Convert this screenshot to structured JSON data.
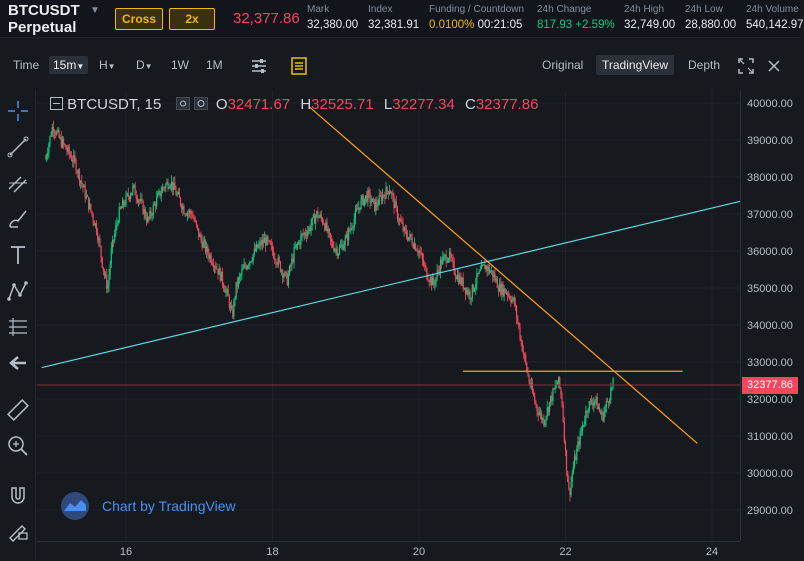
{
  "header": {
    "symbol_line1": "BTCUSDT",
    "symbol_line2": "Perpetual",
    "margin_mode": "Cross",
    "leverage": "2x",
    "last_price": "32,377.86",
    "stats": [
      {
        "label": "Mark",
        "value": "32,380.00",
        "tone": "normal"
      },
      {
        "label": "Index",
        "value": "32,381.91",
        "tone": "normal"
      },
      {
        "label": "Funding / Countdown",
        "value": "0.0100%",
        "value2": "00:21:05",
        "tone": "yellow"
      },
      {
        "label": "24h Change",
        "value": "817.93 +2.59%",
        "tone": "green"
      },
      {
        "label": "24h High",
        "value": "32,749.00",
        "tone": "normal"
      },
      {
        "label": "24h Low",
        "value": "28,880.00",
        "tone": "normal"
      },
      {
        "label": "24h Volume",
        "value": "540,142.97",
        "tone": "normal"
      }
    ]
  },
  "toolbar": {
    "time_label": "Time",
    "interval_selected": "15m",
    "intervals": [
      "H",
      "D",
      "1W",
      "1M"
    ],
    "view_tabs": [
      "Original",
      "TradingView",
      "Depth"
    ],
    "active_view": "TradingView"
  },
  "legend": {
    "title": "BTCUSDT, 15",
    "o_label": "O",
    "o": "32471.67",
    "h_label": "H",
    "h": "32525.71",
    "l_label": "L",
    "l": "32277.34",
    "c_label": "C",
    "c": "32377.86"
  },
  "watermark": "Chart by TradingView",
  "chart_data": {
    "type": "candlestick",
    "y_ticks": [
      "40000.00",
      "39000.00",
      "38000.00",
      "37000.00",
      "36000.00",
      "35000.00",
      "34000.00",
      "33000.00",
      "32000.00",
      "31000.00",
      "30000.00",
      "29000.00"
    ],
    "x_ticks": [
      "16",
      "18",
      "20",
      "22",
      "24"
    ],
    "current_price": "32377.86",
    "ylim": [
      28700,
      40200
    ],
    "xlim": [
      14.85,
      24.4
    ],
    "close_path": [
      [
        14.9,
        38500
      ],
      [
        15.0,
        39400
      ],
      [
        15.1,
        39000
      ],
      [
        15.2,
        38700
      ],
      [
        15.3,
        38400
      ],
      [
        15.4,
        37800
      ],
      [
        15.5,
        37200
      ],
      [
        15.6,
        36600
      ],
      [
        15.7,
        35400
      ],
      [
        15.75,
        35000
      ],
      [
        15.8,
        36000
      ],
      [
        15.9,
        37000
      ],
      [
        16.0,
        37400
      ],
      [
        16.1,
        37700
      ],
      [
        16.2,
        37300
      ],
      [
        16.3,
        36800
      ],
      [
        16.4,
        37300
      ],
      [
        16.5,
        37700
      ],
      [
        16.6,
        37900
      ],
      [
        16.7,
        37500
      ],
      [
        16.8,
        37100
      ],
      [
        16.9,
        37000
      ],
      [
        17.0,
        36400
      ],
      [
        17.1,
        36000
      ],
      [
        17.2,
        35700
      ],
      [
        17.3,
        35300
      ],
      [
        17.4,
        34700
      ],
      [
        17.45,
        34200
      ],
      [
        17.5,
        35000
      ],
      [
        17.6,
        35500
      ],
      [
        17.7,
        35800
      ],
      [
        17.8,
        36100
      ],
      [
        17.9,
        36300
      ],
      [
        18.0,
        36000
      ],
      [
        18.1,
        35600
      ],
      [
        18.2,
        35200
      ],
      [
        18.3,
        36000
      ],
      [
        18.4,
        36400
      ],
      [
        18.5,
        36600
      ],
      [
        18.6,
        37000
      ],
      [
        18.7,
        36800
      ],
      [
        18.8,
        36200
      ],
      [
        18.9,
        36000
      ],
      [
        19.0,
        36300
      ],
      [
        19.1,
        36800
      ],
      [
        19.2,
        37300
      ],
      [
        19.3,
        37500
      ],
      [
        19.4,
        37200
      ],
      [
        19.5,
        37500
      ],
      [
        19.6,
        37700
      ],
      [
        19.7,
        37000
      ],
      [
        19.8,
        36500
      ],
      [
        19.9,
        36300
      ],
      [
        20.0,
        36000
      ],
      [
        20.1,
        35400
      ],
      [
        20.2,
        35100
      ],
      [
        20.3,
        35700
      ],
      [
        20.4,
        35900
      ],
      [
        20.5,
        35400
      ],
      [
        20.6,
        35100
      ],
      [
        20.7,
        34800
      ],
      [
        20.8,
        35300
      ],
      [
        20.9,
        35600
      ],
      [
        21.0,
        35400
      ],
      [
        21.1,
        35000
      ],
      [
        21.2,
        34900
      ],
      [
        21.3,
        34600
      ],
      [
        21.4,
        33500
      ],
      [
        21.5,
        32500
      ],
      [
        21.6,
        31800
      ],
      [
        21.7,
        31400
      ],
      [
        21.8,
        32000
      ],
      [
        21.9,
        32500
      ],
      [
        21.95,
        32000
      ],
      [
        22.0,
        30500
      ],
      [
        22.05,
        29400
      ],
      [
        22.1,
        30100
      ],
      [
        22.2,
        31000
      ],
      [
        22.3,
        31800
      ],
      [
        22.4,
        32000
      ],
      [
        22.5,
        31500
      ],
      [
        22.6,
        32100
      ],
      [
        22.65,
        32400
      ]
    ],
    "trendlines": [
      {
        "color": "#ff9f1a",
        "points": [
          [
            18.5,
            39900
          ],
          [
            23.8,
            30800
          ]
        ]
      },
      {
        "color": "#5fd7e6",
        "points": [
          [
            14.85,
            32850
          ],
          [
            24.4,
            37350
          ]
        ]
      },
      {
        "color": "#ff9f1a",
        "points": [
          [
            20.6,
            32750
          ],
          [
            23.6,
            32750
          ]
        ]
      }
    ],
    "price_line": {
      "color": "#8b2d39",
      "value": 32377.86
    }
  }
}
